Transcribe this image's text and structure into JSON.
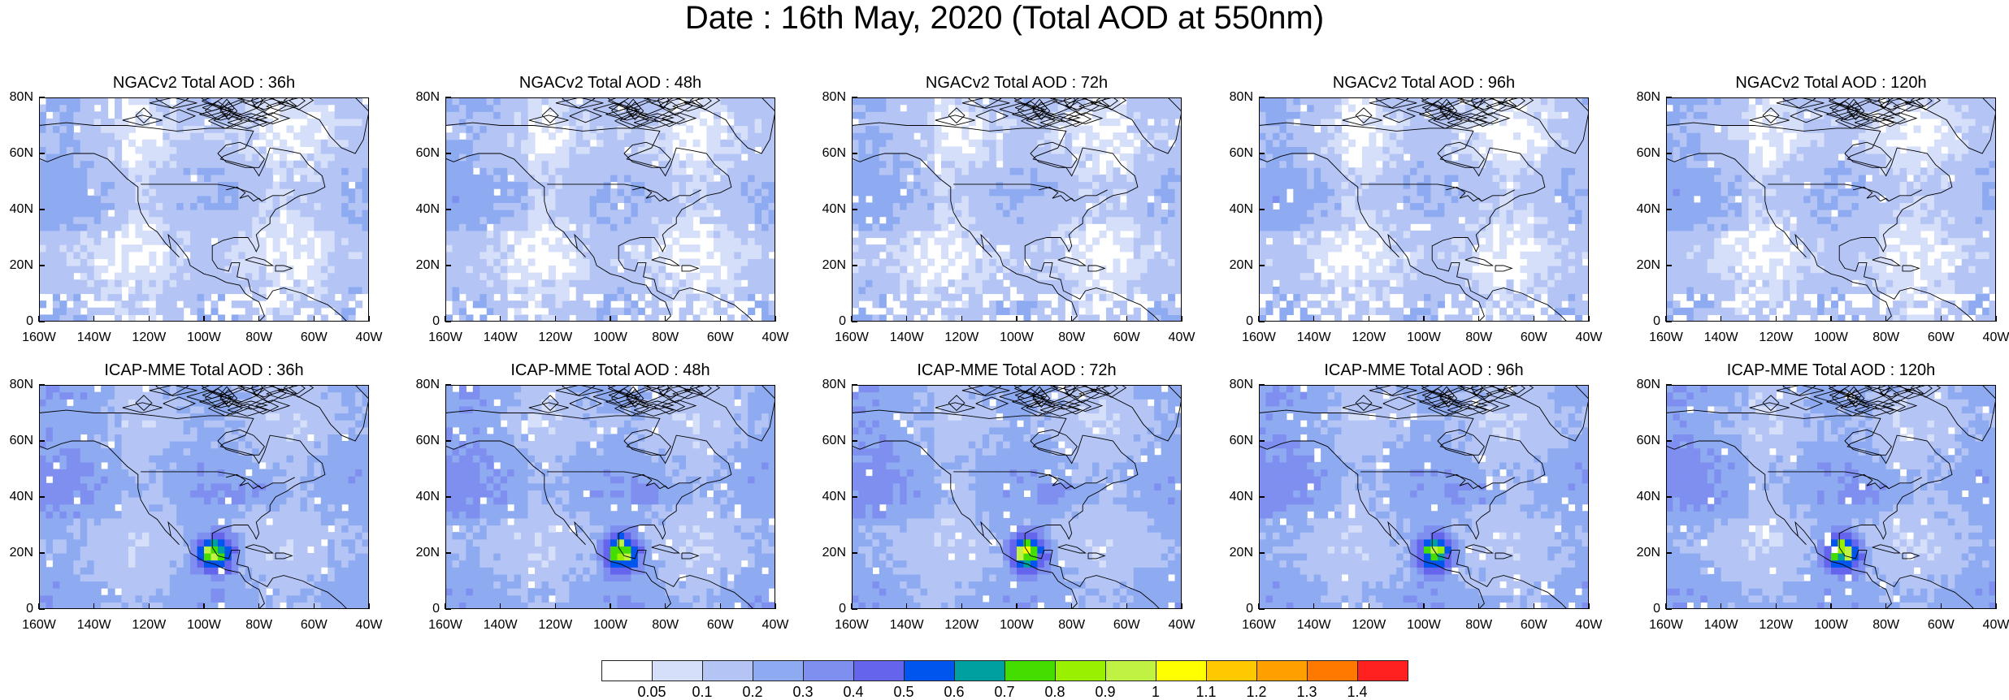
{
  "title": "Date : 16th May, 2020 (Total AOD at 550nm)",
  "rows": [
    {
      "model": "NGACv2",
      "panels": [
        {
          "title": "NGACv2 Total AOD : 36h"
        },
        {
          "title": "NGACv2 Total AOD : 48h"
        },
        {
          "title": "NGACv2 Total AOD : 72h"
        },
        {
          "title": "NGACv2 Total AOD : 96h"
        },
        {
          "title": "NGACv2 Total AOD : 120h"
        }
      ]
    },
    {
      "model": "ICAP-MME",
      "panels": [
        {
          "title": "ICAP-MME Total AOD : 36h"
        },
        {
          "title": "ICAP-MME Total AOD : 48h"
        },
        {
          "title": "ICAP-MME Total AOD : 72h"
        },
        {
          "title": "ICAP-MME Total AOD : 96h"
        },
        {
          "title": "ICAP-MME Total AOD : 120h"
        }
      ]
    }
  ],
  "axes": {
    "y_ticks": [
      "0",
      "20N",
      "40N",
      "60N",
      "80N"
    ],
    "x_ticks": [
      "160W",
      "140W",
      "120W",
      "100W",
      "80W",
      "60W",
      "40W"
    ],
    "lat_range": [
      0,
      80
    ],
    "lon_range": [
      -160,
      -40
    ]
  },
  "colorbar": {
    "labels": [
      "0.05",
      "0.1",
      "0.2",
      "0.3",
      "0.4",
      "0.5",
      "0.6",
      "0.7",
      "0.8",
      "0.9",
      "1",
      "1.1",
      "1.2",
      "1.3",
      "1.4"
    ],
    "colors": [
      "#ffffff",
      "#d6dff9",
      "#b4c5f5",
      "#8eabf2",
      "#7f8ff0",
      "#6464ec",
      "#0055ee",
      "#00a0a0",
      "#44dd00",
      "#99f000",
      "#bff242",
      "#ffff00",
      "#ffc800",
      "#ffa000",
      "#ff7800",
      "#ff2020"
    ]
  }
}
